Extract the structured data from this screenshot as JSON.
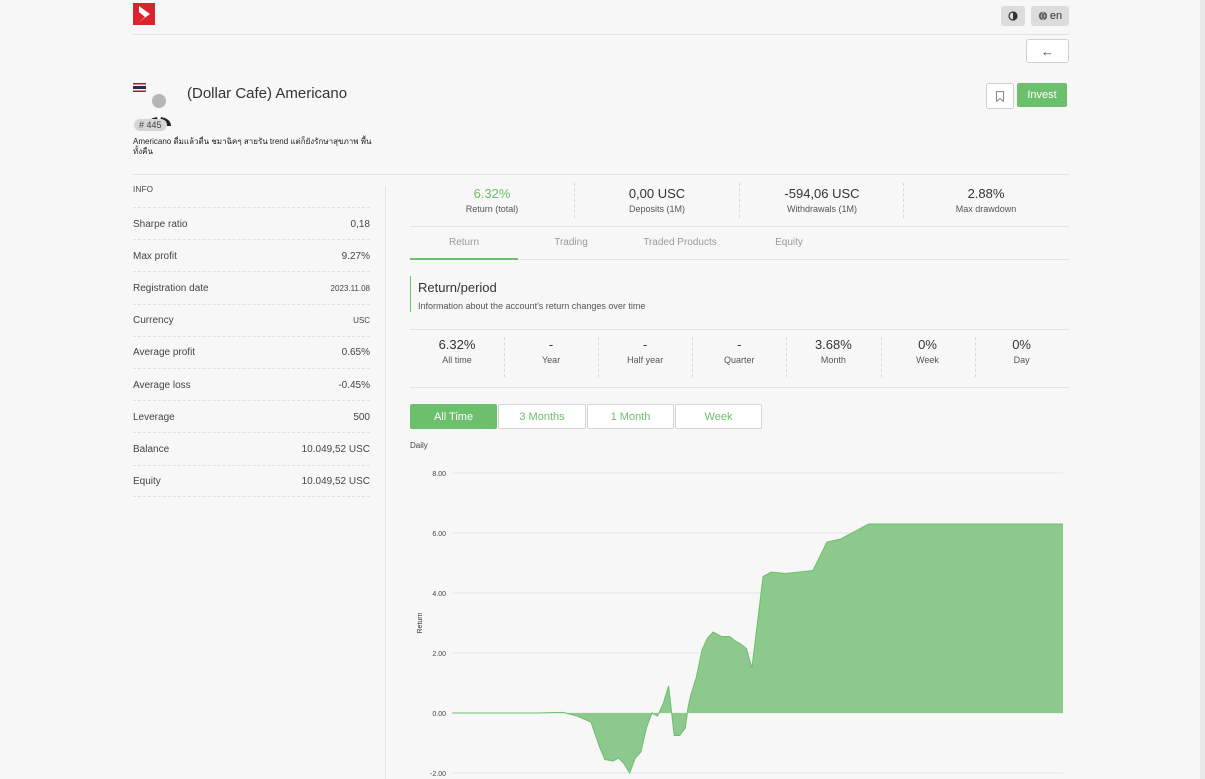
{
  "header": {
    "theme_toggle_icon": "half-circle-icon",
    "language_label": "en",
    "language_icon": "globe-icon",
    "back_icon": "arrow-left-icon",
    "back_glyph": "←"
  },
  "profile": {
    "name": "(Dollar Cafe) Americano",
    "rank": "# 445",
    "description": "Americano ดื่มแล้วตื่น ชมาฉิคๆ สายรัน trend แต่ก็ยังรักษาสุขภาพ พื้นทั้งคืน",
    "invest_label": "Invest"
  },
  "info": {
    "title": "INFO",
    "rows": [
      {
        "label": "Sharpe ratio",
        "value": "0,18"
      },
      {
        "label": "Max profit",
        "value": "9.27%"
      },
      {
        "label": "Registration date",
        "value": "2023.11.08"
      },
      {
        "label": "Currency",
        "value": "USC"
      },
      {
        "label": "Average profit",
        "value": "0.65%"
      },
      {
        "label": "Average loss",
        "value": "-0.45%"
      },
      {
        "label": "Leverage",
        "value": "500"
      },
      {
        "label": "Balance",
        "value": "10.049,52 USC"
      },
      {
        "label": "Equity",
        "value": "10.049,52 USC"
      }
    ]
  },
  "stats": [
    {
      "value": "6.32%",
      "label": "Return (total)"
    },
    {
      "value": "0,00 USC",
      "label": "Deposits (1M)"
    },
    {
      "value": "-594,06 USC",
      "label": "Withdrawals (1M)"
    },
    {
      "value": "2.88%",
      "label": "Max drawdown"
    }
  ],
  "tabs": [
    "Return",
    "Trading",
    "Traded Products",
    "Equity"
  ],
  "section": {
    "title": "Return/period",
    "subtitle": "Information about the account's return changes over time"
  },
  "periods": [
    {
      "value": "6.32%",
      "label": "All time"
    },
    {
      "value": "-",
      "label": "Year"
    },
    {
      "value": "-",
      "label": "Half year"
    },
    {
      "value": "-",
      "label": "Quarter"
    },
    {
      "value": "3.68%",
      "label": "Month"
    },
    {
      "value": "0%",
      "label": "Week"
    },
    {
      "value": "0%",
      "label": "Day"
    }
  ],
  "range_buttons": [
    "All Time",
    "3 Months",
    "1 Month",
    "Week"
  ],
  "colors": {
    "accent": "#6cbf6c",
    "fill": "#8dc98d"
  },
  "chart_data": {
    "type": "area",
    "title": "Daily",
    "xlabel": "",
    "ylabel": "Return",
    "ylim": [
      -2,
      8
    ],
    "yticks": [
      "8.00",
      "6.00",
      "4.00",
      "2.00",
      "0.00",
      "-2.00"
    ],
    "grid": true,
    "x": [
      0,
      10,
      20,
      30,
      40,
      45,
      50,
      53,
      55,
      58,
      60,
      62,
      64,
      65,
      66,
      68,
      70,
      72,
      74,
      76,
      78,
      80,
      82,
      84,
      85,
      86,
      87,
      88,
      90,
      92,
      94,
      96,
      97,
      98,
      100,
      102,
      104,
      106,
      108,
      112,
      115,
      120,
      125,
      130,
      135,
      140,
      150,
      160,
      170,
      180,
      190,
      200,
      210,
      220
    ],
    "y": [
      0,
      0,
      0,
      0,
      0.02,
      -0.1,
      -0.3,
      -1.1,
      -1.55,
      -1.6,
      -1.5,
      -1.7,
      -2.0,
      -1.75,
      -1.5,
      -1.3,
      -0.5,
      0,
      -0.1,
      0.3,
      0.9,
      -0.75,
      -0.75,
      -0.5,
      0.2,
      0.6,
      0.9,
      1.2,
      2.1,
      2.5,
      2.7,
      2.6,
      2.55,
      2.55,
      2.55,
      2.4,
      2.3,
      2.15,
      1.5,
      4.55,
      4.7,
      4.65,
      4.7,
      4.75,
      5.7,
      5.8,
      6.3,
      6.3,
      6.3,
      6.3,
      6.3,
      6.3,
      6.3,
      6.3
    ]
  }
}
